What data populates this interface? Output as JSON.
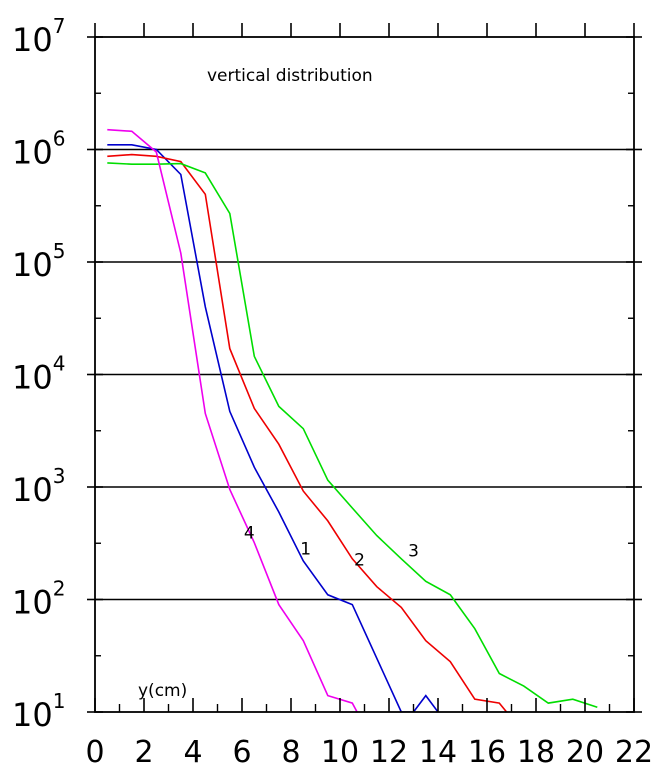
{
  "chart_data": {
    "type": "line",
    "title": "vertical distribution",
    "xlabel": "y(cm)",
    "ylabel": "",
    "xlim": [
      0,
      22
    ],
    "ylim": [
      10,
      10000000
    ],
    "y_scale": "log",
    "x_ticks": [
      0,
      2,
      4,
      6,
      8,
      10,
      12,
      14,
      16,
      18,
      20,
      22
    ],
    "x_tick_labels": [
      "0",
      "2",
      "4",
      "6",
      "8",
      "10",
      "12",
      "14",
      "16",
      "18",
      "20",
      "22"
    ],
    "y_ticks": [
      10,
      100,
      1000,
      10000,
      100000,
      1000000,
      10000000
    ],
    "y_tick_labels": [
      {
        "base": "10",
        "exp": "1"
      },
      {
        "base": "10",
        "exp": "2"
      },
      {
        "base": "10",
        "exp": "3"
      },
      {
        "base": "10",
        "exp": "4"
      },
      {
        "base": "10",
        "exp": "5"
      },
      {
        "base": "10",
        "exp": "6"
      },
      {
        "base": "10",
        "exp": "7"
      }
    ],
    "grid": "horizontal lines at 1e2, 1e3, 1e4, 1e5",
    "series": [
      {
        "label": "1",
        "color": "#0000cc",
        "x": [
          0.5,
          1.5,
          2.5,
          3.5,
          4.5,
          5.5,
          6.5,
          7.5,
          8.5,
          9.5,
          10.5,
          11.5,
          12.5,
          13.0,
          13.5,
          14.0
        ],
        "y": [
          1100000,
          1100000,
          1000000,
          600000,
          40000,
          4700,
          1500,
          600,
          220,
          110,
          90,
          30,
          10,
          10,
          14,
          10
        ]
      },
      {
        "label": "2",
        "color": "#ee0000",
        "x": [
          0.5,
          1.5,
          2.5,
          3.5,
          4.5,
          5.5,
          6.5,
          7.5,
          8.5,
          9.5,
          10.5,
          11.5,
          12.5,
          13.5,
          14.5,
          15.5,
          16.5,
          16.8
        ],
        "y": [
          870000,
          900000,
          870000,
          780000,
          400000,
          17000,
          5000,
          2400,
          920,
          500,
          230,
          130,
          85,
          43,
          28,
          13,
          12,
          10
        ]
      },
      {
        "label": "3",
        "color": "#00dd00",
        "x": [
          0.5,
          1.5,
          2.5,
          3.5,
          4.5,
          5.5,
          6.5,
          7.5,
          8.5,
          9.5,
          10.5,
          11.5,
          12.5,
          13.5,
          14.5,
          15.5,
          16.5,
          17.5,
          18.5,
          19.5,
          20.5
        ],
        "y": [
          760000,
          740000,
          740000,
          750000,
          620000,
          270000,
          14500,
          5200,
          3300,
          1150,
          650,
          370,
          230,
          145,
          110,
          55,
          22,
          17,
          12,
          13,
          11
        ]
      },
      {
        "label": "4",
        "color": "#ee00ee",
        "x": [
          0.5,
          1.5,
          2.5,
          3.5,
          4.5,
          5.5,
          6.5,
          7.5,
          8.5,
          9.5,
          10.5,
          10.7
        ],
        "y": [
          1500000,
          1450000,
          950000,
          120000,
          4500,
          950,
          320,
          90,
          43,
          14,
          12,
          10
        ]
      }
    ],
    "series_annotations": [
      {
        "text": "4",
        "x": 6.3,
        "y": 350
      },
      {
        "text": "1",
        "x": 8.6,
        "y": 250
      },
      {
        "text": "2",
        "x": 10.8,
        "y": 200
      },
      {
        "text": "3",
        "x": 13.0,
        "y": 240
      }
    ]
  }
}
